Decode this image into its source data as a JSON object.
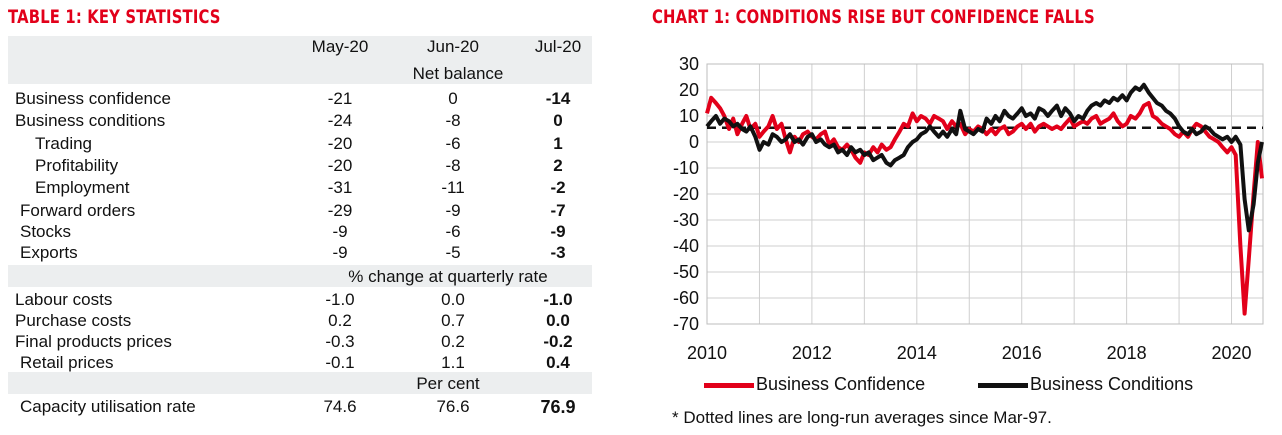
{
  "table": {
    "title": "TABLE 1: KEY STATISTICS",
    "columns": [
      "May-20",
      "Jun-20",
      "Jul-20"
    ],
    "sections": [
      {
        "header": "Net balance",
        "rows": [
          {
            "label": "Business confidence",
            "values": [
              "-21",
              "0",
              "-14"
            ]
          },
          {
            "label": "Business conditions",
            "values": [
              "-24",
              "-8",
              "0"
            ]
          },
          {
            "label": "Trading",
            "values": [
              "-20",
              "-6",
              "1"
            ]
          },
          {
            "label": "Profitability",
            "values": [
              "-20",
              "-8",
              "2"
            ]
          },
          {
            "label": "Employment",
            "values": [
              "-31",
              "-11",
              "-2"
            ]
          },
          {
            "label": "Forward orders",
            "values": [
              "-29",
              "-9",
              "-7"
            ]
          },
          {
            "label": "Stocks",
            "values": [
              "-9",
              "-6",
              "-9"
            ]
          },
          {
            "label": "Exports",
            "values": [
              "-9",
              "-5",
              "-3"
            ]
          }
        ]
      },
      {
        "header": "% change at quarterly rate",
        "rows": [
          {
            "label": "Labour costs",
            "values": [
              "-1.0",
              "0.0",
              "-1.0"
            ]
          },
          {
            "label": "Purchase costs",
            "values": [
              "0.2",
              "0.7",
              "0.0"
            ]
          },
          {
            "label": "Final products prices",
            "values": [
              "-0.3",
              "0.2",
              "-0.2"
            ]
          },
          {
            "label": "Retail prices",
            "values": [
              "-0.1",
              "1.1",
              "0.4"
            ]
          }
        ]
      },
      {
        "header": "Per cent",
        "rows": [
          {
            "label": "Capacity utilisation rate",
            "values": [
              "74.6",
              "76.6",
              "76.9"
            ]
          }
        ]
      }
    ]
  },
  "chart_data": {
    "type": "line",
    "title": "CHART 1: CONDITIONS RISE BUT CONFIDENCE FALLS",
    "xlabel": "",
    "ylabel": "",
    "ylim": [
      -70,
      30
    ],
    "yticks": [
      "30",
      "20",
      "10",
      "0",
      "-10",
      "-20",
      "-30",
      "-40",
      "-50",
      "-60",
      "-70"
    ],
    "xlim": [
      2010,
      2020.6
    ],
    "xticks": [
      "2010",
      "2012",
      "2014",
      "2016",
      "2018",
      "2020"
    ],
    "grid": true,
    "legend_position": "bottom",
    "series": [
      {
        "name": "Business Confidence",
        "color": "#e2001a",
        "points": [
          [
            2010.0,
            11
          ],
          [
            2010.08,
            17
          ],
          [
            2010.17,
            15
          ],
          [
            2010.25,
            13
          ],
          [
            2010.33,
            10
          ],
          [
            2010.42,
            5
          ],
          [
            2010.5,
            9
          ],
          [
            2010.58,
            3
          ],
          [
            2010.67,
            7
          ],
          [
            2010.75,
            10
          ],
          [
            2010.83,
            5
          ],
          [
            2010.92,
            7
          ],
          [
            2011.0,
            2
          ],
          [
            2011.08,
            4
          ],
          [
            2011.17,
            6
          ],
          [
            2011.25,
            10
          ],
          [
            2011.33,
            5
          ],
          [
            2011.42,
            7
          ],
          [
            2011.5,
            1
          ],
          [
            2011.58,
            -4
          ],
          [
            2011.67,
            2
          ],
          [
            2011.75,
            0
          ],
          [
            2011.83,
            3
          ],
          [
            2011.92,
            4
          ],
          [
            2012.0,
            2
          ],
          [
            2012.08,
            1
          ],
          [
            2012.17,
            3
          ],
          [
            2012.25,
            4
          ],
          [
            2012.33,
            -1
          ],
          [
            2012.42,
            1
          ],
          [
            2012.5,
            -2
          ],
          [
            2012.58,
            -3
          ],
          [
            2012.67,
            -1
          ],
          [
            2012.75,
            -3
          ],
          [
            2012.83,
            -6
          ],
          [
            2012.92,
            -8
          ],
          [
            2013.0,
            -4
          ],
          [
            2013.08,
            -5
          ],
          [
            2013.17,
            -2
          ],
          [
            2013.25,
            -4
          ],
          [
            2013.33,
            -1
          ],
          [
            2013.42,
            -3
          ],
          [
            2013.5,
            -2
          ],
          [
            2013.58,
            1
          ],
          [
            2013.67,
            4
          ],
          [
            2013.75,
            7
          ],
          [
            2013.83,
            6
          ],
          [
            2013.92,
            11
          ],
          [
            2014.0,
            8
          ],
          [
            2014.08,
            10
          ],
          [
            2014.17,
            9
          ],
          [
            2014.25,
            7
          ],
          [
            2014.33,
            10
          ],
          [
            2014.42,
            9
          ],
          [
            2014.5,
            8
          ],
          [
            2014.58,
            5
          ],
          [
            2014.67,
            8
          ],
          [
            2014.75,
            6
          ],
          [
            2014.83,
            7
          ],
          [
            2014.92,
            3
          ],
          [
            2015.0,
            5
          ],
          [
            2015.08,
            4
          ],
          [
            2015.17,
            6
          ],
          [
            2015.25,
            5
          ],
          [
            2015.33,
            3
          ],
          [
            2015.42,
            5
          ],
          [
            2015.5,
            3
          ],
          [
            2015.58,
            5
          ],
          [
            2015.67,
            6
          ],
          [
            2015.75,
            3
          ],
          [
            2015.83,
            4
          ],
          [
            2015.92,
            6
          ],
          [
            2016.0,
            7
          ],
          [
            2016.08,
            5
          ],
          [
            2016.17,
            7
          ],
          [
            2016.25,
            4
          ],
          [
            2016.33,
            6
          ],
          [
            2016.42,
            7
          ],
          [
            2016.5,
            6
          ],
          [
            2016.58,
            5
          ],
          [
            2016.67,
            6
          ],
          [
            2016.75,
            5
          ],
          [
            2016.83,
            7
          ],
          [
            2016.92,
            9
          ],
          [
            2017.0,
            6
          ],
          [
            2017.08,
            7
          ],
          [
            2017.17,
            8
          ],
          [
            2017.25,
            7
          ],
          [
            2017.33,
            9
          ],
          [
            2017.42,
            10
          ],
          [
            2017.5,
            7
          ],
          [
            2017.58,
            8
          ],
          [
            2017.67,
            9
          ],
          [
            2017.75,
            11
          ],
          [
            2017.83,
            8
          ],
          [
            2017.92,
            6
          ],
          [
            2018.0,
            7
          ],
          [
            2018.08,
            10
          ],
          [
            2018.17,
            9
          ],
          [
            2018.25,
            11
          ],
          [
            2018.33,
            14
          ],
          [
            2018.42,
            15
          ],
          [
            2018.5,
            10
          ],
          [
            2018.58,
            9
          ],
          [
            2018.67,
            7
          ],
          [
            2018.75,
            6
          ],
          [
            2018.83,
            5
          ],
          [
            2018.92,
            3
          ],
          [
            2019.0,
            2
          ],
          [
            2019.08,
            4
          ],
          [
            2019.17,
            2
          ],
          [
            2019.25,
            5
          ],
          [
            2019.33,
            7
          ],
          [
            2019.42,
            6
          ],
          [
            2019.5,
            4
          ],
          [
            2019.58,
            2
          ],
          [
            2019.67,
            1
          ],
          [
            2019.75,
            0
          ],
          [
            2019.83,
            -2
          ],
          [
            2019.92,
            -4
          ],
          [
            2020.0,
            -2
          ],
          [
            2020.08,
            -5
          ],
          [
            2020.17,
            -40
          ],
          [
            2020.25,
            -66
          ],
          [
            2020.33,
            -45
          ],
          [
            2020.42,
            -20
          ],
          [
            2020.5,
            0
          ],
          [
            2020.58,
            -14
          ]
        ]
      },
      {
        "name": "Business Conditions",
        "color": "#111111",
        "points": [
          [
            2010.0,
            6
          ],
          [
            2010.08,
            8
          ],
          [
            2010.17,
            10
          ],
          [
            2010.25,
            7
          ],
          [
            2010.33,
            9
          ],
          [
            2010.42,
            8
          ],
          [
            2010.5,
            6
          ],
          [
            2010.58,
            7
          ],
          [
            2010.67,
            5
          ],
          [
            2010.75,
            4
          ],
          [
            2010.83,
            6
          ],
          [
            2010.92,
            2
          ],
          [
            2011.0,
            -3
          ],
          [
            2011.08,
            0
          ],
          [
            2011.17,
            -1
          ],
          [
            2011.25,
            3
          ],
          [
            2011.33,
            2
          ],
          [
            2011.42,
            0
          ],
          [
            2011.5,
            1
          ],
          [
            2011.58,
            3
          ],
          [
            2011.67,
            0
          ],
          [
            2011.75,
            1
          ],
          [
            2011.83,
            -1
          ],
          [
            2011.92,
            2
          ],
          [
            2012.0,
            3
          ],
          [
            2012.08,
            0
          ],
          [
            2012.17,
            1
          ],
          [
            2012.25,
            -1
          ],
          [
            2012.33,
            -2
          ],
          [
            2012.42,
            -1
          ],
          [
            2012.5,
            -4
          ],
          [
            2012.58,
            -3
          ],
          [
            2012.67,
            -5
          ],
          [
            2012.75,
            -2
          ],
          [
            2012.83,
            -4
          ],
          [
            2012.92,
            -3
          ],
          [
            2013.0,
            -5
          ],
          [
            2013.08,
            -4
          ],
          [
            2013.17,
            -7
          ],
          [
            2013.25,
            -6
          ],
          [
            2013.33,
            -5
          ],
          [
            2013.42,
            -8
          ],
          [
            2013.5,
            -9
          ],
          [
            2013.58,
            -7
          ],
          [
            2013.67,
            -6
          ],
          [
            2013.75,
            -5
          ],
          [
            2013.83,
            -2
          ],
          [
            2013.92,
            0
          ],
          [
            2014.0,
            1
          ],
          [
            2014.08,
            3
          ],
          [
            2014.17,
            4
          ],
          [
            2014.25,
            6
          ],
          [
            2014.33,
            4
          ],
          [
            2014.42,
            2
          ],
          [
            2014.5,
            4
          ],
          [
            2014.58,
            2
          ],
          [
            2014.67,
            5
          ],
          [
            2014.75,
            3
          ],
          [
            2014.83,
            12
          ],
          [
            2014.92,
            5
          ],
          [
            2015.0,
            4
          ],
          [
            2015.08,
            3
          ],
          [
            2015.17,
            5
          ],
          [
            2015.25,
            4
          ],
          [
            2015.33,
            9
          ],
          [
            2015.42,
            7
          ],
          [
            2015.5,
            10
          ],
          [
            2015.58,
            8
          ],
          [
            2015.67,
            12
          ],
          [
            2015.75,
            10
          ],
          [
            2015.83,
            9
          ],
          [
            2015.92,
            11
          ],
          [
            2016.0,
            13
          ],
          [
            2016.08,
            10
          ],
          [
            2016.17,
            11
          ],
          [
            2016.25,
            9
          ],
          [
            2016.33,
            13
          ],
          [
            2016.42,
            12
          ],
          [
            2016.5,
            10
          ],
          [
            2016.58,
            12
          ],
          [
            2016.67,
            14
          ],
          [
            2016.75,
            10
          ],
          [
            2016.83,
            13
          ],
          [
            2016.92,
            11
          ],
          [
            2017.0,
            8
          ],
          [
            2017.08,
            10
          ],
          [
            2017.17,
            9
          ],
          [
            2017.25,
            12
          ],
          [
            2017.33,
            14
          ],
          [
            2017.42,
            15
          ],
          [
            2017.5,
            14
          ],
          [
            2017.58,
            16
          ],
          [
            2017.67,
            15
          ],
          [
            2017.75,
            17
          ],
          [
            2017.83,
            16
          ],
          [
            2017.92,
            18
          ],
          [
            2018.0,
            16
          ],
          [
            2018.08,
            19
          ],
          [
            2018.17,
            21
          ],
          [
            2018.25,
            20
          ],
          [
            2018.33,
            22
          ],
          [
            2018.42,
            19
          ],
          [
            2018.5,
            17
          ],
          [
            2018.58,
            15
          ],
          [
            2018.67,
            14
          ],
          [
            2018.75,
            12
          ],
          [
            2018.83,
            11
          ],
          [
            2018.92,
            9
          ],
          [
            2019.0,
            6
          ],
          [
            2019.08,
            4
          ],
          [
            2019.17,
            3
          ],
          [
            2019.25,
            5
          ],
          [
            2019.33,
            3
          ],
          [
            2019.42,
            4
          ],
          [
            2019.5,
            6
          ],
          [
            2019.58,
            5
          ],
          [
            2019.67,
            3
          ],
          [
            2019.75,
            2
          ],
          [
            2019.83,
            1
          ],
          [
            2019.92,
            2
          ],
          [
            2020.0,
            0
          ],
          [
            2020.08,
            2
          ],
          [
            2020.17,
            -1
          ],
          [
            2020.25,
            -22
          ],
          [
            2020.33,
            -34
          ],
          [
            2020.42,
            -24
          ],
          [
            2020.5,
            -8
          ],
          [
            2020.58,
            0
          ]
        ]
      }
    ],
    "reference_lines": [
      {
        "y": 5.5,
        "style": "dashed",
        "color": "#111111"
      }
    ],
    "footnote": "* Dotted lines are long-run averages since Mar-97."
  }
}
